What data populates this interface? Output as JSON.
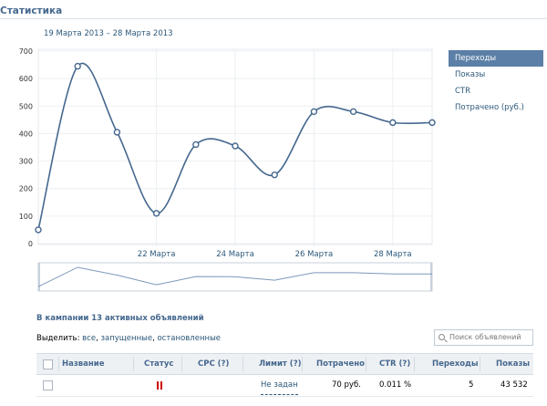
{
  "page": {
    "title": "Статистика"
  },
  "range": {
    "label": "19 Марта 2013 – 28 Марта 2013"
  },
  "legend": {
    "items": [
      {
        "label": "Переходы",
        "active": true
      },
      {
        "label": "Показы",
        "active": false
      },
      {
        "label": "CTR",
        "active": false
      },
      {
        "label": "Потрачено (руб.)",
        "active": false
      }
    ]
  },
  "chart_data": {
    "type": "line",
    "series": [
      {
        "x": [
          19,
          20,
          21,
          22,
          23,
          24,
          25,
          26,
          27,
          28,
          29
        ],
        "values": [
          50,
          645,
          405,
          110,
          360,
          355,
          250,
          480,
          480,
          440,
          440
        ]
      }
    ],
    "yticks": [
      "0",
      "100",
      "200",
      "300",
      "400",
      "500",
      "600",
      "700"
    ],
    "xticks": [
      {
        "x": 22,
        "label": "22 Марта"
      },
      {
        "x": 24,
        "label": "24 Марта"
      },
      {
        "x": 26,
        "label": "26 Марта"
      },
      {
        "x": 28,
        "label": "28 Марта"
      }
    ],
    "ylim": [
      0,
      700
    ],
    "line_color": "#45688e",
    "grid": true
  },
  "campaign": {
    "title": "В кампании 13 активных объявлений"
  },
  "select": {
    "prefix": "Выделить:",
    "all": "все",
    "sep1": ",",
    "running": "запущенные",
    "sep2": ",",
    "stopped": "остановленные"
  },
  "search": {
    "placeholder": "Поиск объявлений"
  },
  "table": {
    "headers": {
      "name": "Название",
      "status": "Статус",
      "cpc": "CPC (?)",
      "limit": "Лимит (?)",
      "spent": "Потрачено",
      "ctr": "CTR (?)",
      "clicks": "Переходы",
      "views": "Показы"
    },
    "rows": [
      {
        "name": "",
        "limit": "Не задан",
        "spent": "70 руб.",
        "ctr": "0.011 %",
        "clicks": "5",
        "views": "43 532"
      }
    ]
  }
}
